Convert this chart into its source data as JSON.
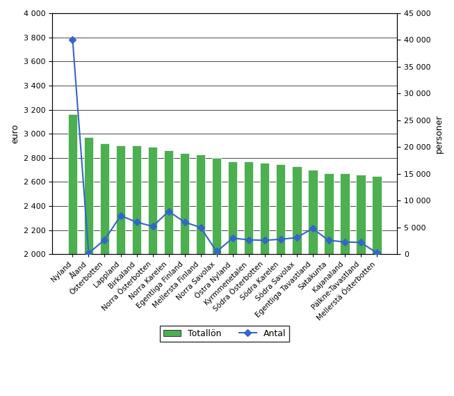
{
  "categories": [
    "Nyland",
    "Åland",
    "Österbotten",
    "Lappland",
    "Birkaland",
    "Norra Österbotten",
    "Norra Karelen",
    "Egentliga Finland",
    "Mellersta Finland",
    "Norra Savolax",
    "Östra Nyland",
    "Kyrmmenetalen",
    "Södra Österbotten",
    "Södra Karelen",
    "Södra Savolax",
    "Egentliga Tavastland",
    "Satakunta",
    "Kajanaland",
    "Pälkne-Tavastland",
    "Mellerstä Österbotten"
  ],
  "totallön": [
    3160,
    2970,
    2920,
    2900,
    2900,
    2890,
    2860,
    2840,
    2830,
    2800,
    2770,
    2770,
    2760,
    2745,
    2730,
    2700,
    2670,
    2670,
    2660,
    2650
  ],
  "antal": [
    40000,
    200,
    2700,
    7200,
    6000,
    5200,
    8000,
    6000,
    5000,
    500,
    3000,
    2700,
    2600,
    2800,
    3100,
    4800,
    2600,
    2300,
    2200,
    300
  ],
  "bar_color": "#4CAF50",
  "line_color": "#3366CC",
  "ylim_left": [
    2000,
    4000
  ],
  "ylim_right": [
    0,
    45000
  ],
  "yticks_left": [
    2000,
    2200,
    2400,
    2600,
    2800,
    3000,
    3200,
    3400,
    3600,
    3800,
    4000
  ],
  "yticks_right": [
    0,
    5000,
    10000,
    15000,
    20000,
    25000,
    30000,
    35000,
    40000,
    45000
  ],
  "ylabel_left": "euro",
  "ylabel_right": "personer",
  "legend_bar": "Totallön",
  "legend_line": "Antal",
  "marker": "D",
  "marker_size": 5,
  "line_width": 1.5
}
